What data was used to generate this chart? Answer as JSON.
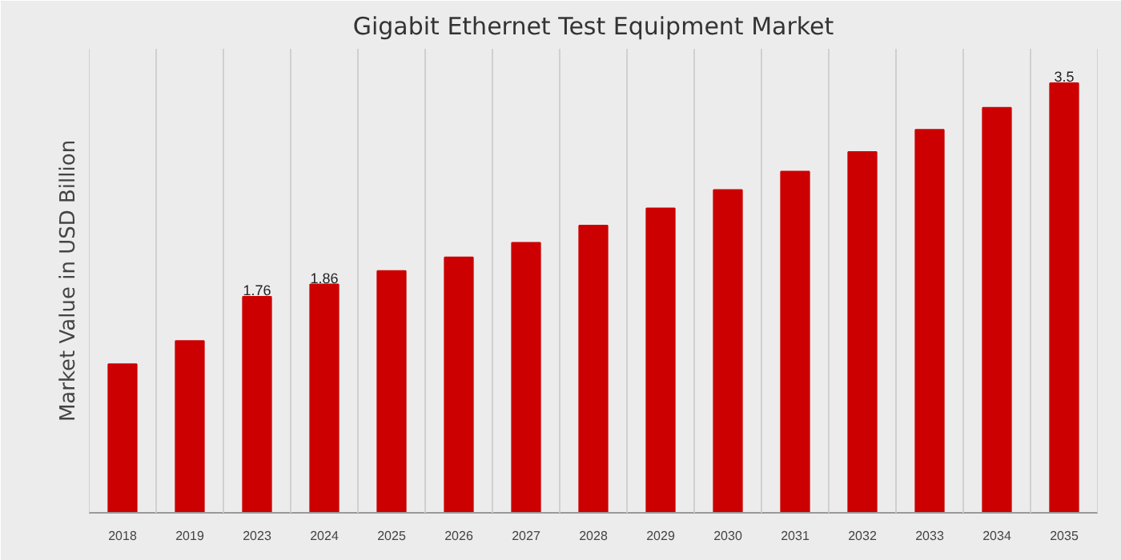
{
  "chart_data": {
    "type": "bar",
    "title": "Gigabit Ethernet Test Equipment Market",
    "ylabel": "Market Value in USD Billion",
    "categories": [
      "2018",
      "2019",
      "2023",
      "2024",
      "2025",
      "2026",
      "2027",
      "2028",
      "2029",
      "2030",
      "2031",
      "2032",
      "2033",
      "2034",
      "2035"
    ],
    "values": [
      1.21,
      1.4,
      1.76,
      1.86,
      1.97,
      2.08,
      2.2,
      2.34,
      2.48,
      2.63,
      2.78,
      2.94,
      3.12,
      3.3,
      3.5
    ],
    "value_labels": [
      null,
      null,
      "1.76",
      "1.86",
      null,
      null,
      null,
      null,
      null,
      null,
      null,
      null,
      null,
      null,
      "3.5"
    ],
    "color": "#cc0000",
    "grid": "x"
  }
}
